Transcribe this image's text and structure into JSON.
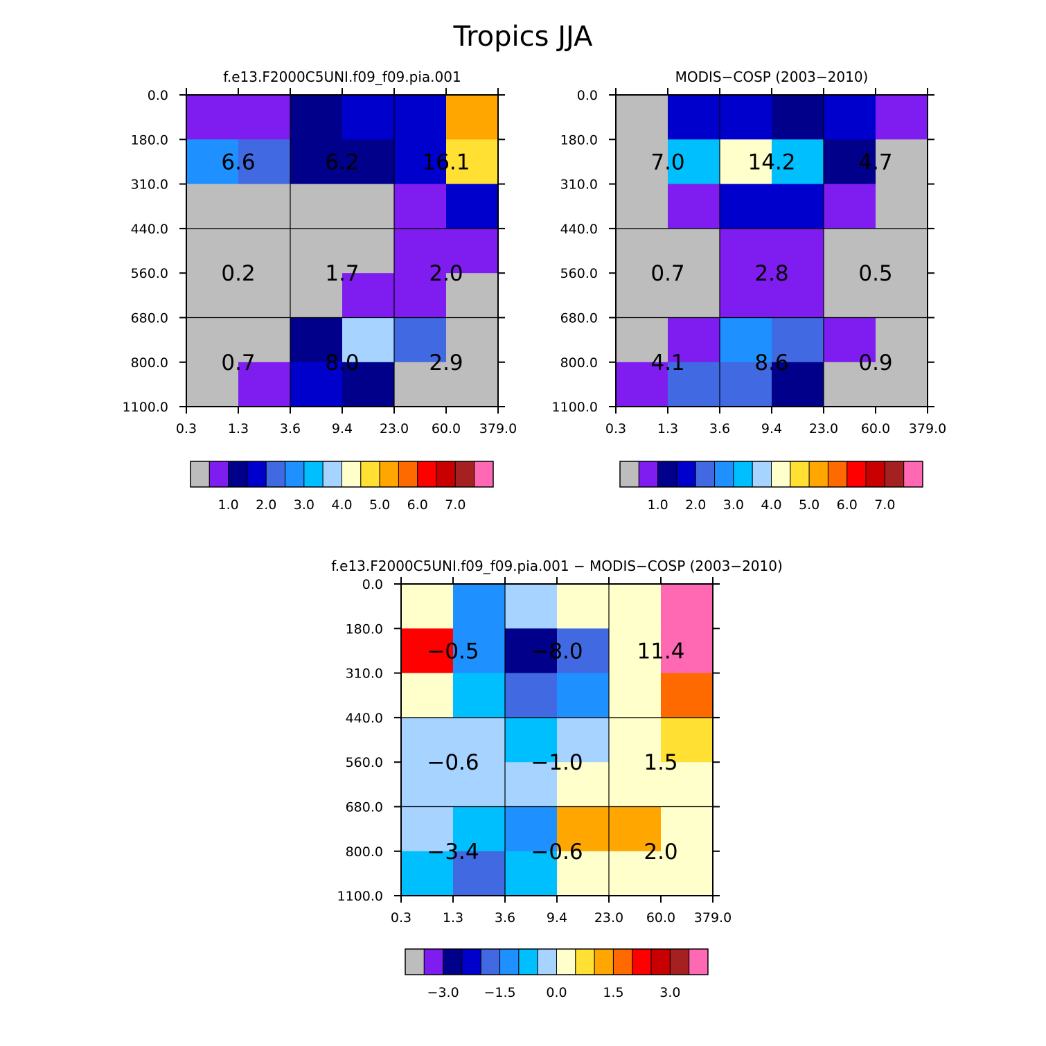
{
  "page_title": "Tropics JJA",
  "colors": {
    "palette": [
      "#bdbdbd",
      "#7f1df0",
      "#00008b",
      "#0000cd",
      "#4169e1",
      "#1e90ff",
      "#00bfff",
      "#a6d3ff",
      "#ffffcc",
      "#ffe033",
      "#ffa600",
      "#ff6a00",
      "#ff0000",
      "#c80000",
      "#a52020",
      "#ff69b4"
    ]
  },
  "chart_data": [
    {
      "type": "heatmap",
      "title": "f.e13.F2000C5UNI.f09_f09.pia.001",
      "x_ticks": [
        "0.3",
        "1.3",
        "3.6",
        "9.4",
        "23.0",
        "60.0",
        "379.0"
      ],
      "y_ticks": [
        "0.0",
        "180.0",
        "310.0",
        "440.0",
        "560.0",
        "680.0",
        "800.0",
        "1100.0"
      ],
      "cells": [
        [
          1,
          1,
          2,
          3,
          3,
          10
        ],
        [
          5,
          4,
          2,
          2,
          3,
          9
        ],
        [
          0,
          0,
          0,
          0,
          1,
          3
        ],
        [
          0,
          0,
          0,
          0,
          1,
          1
        ],
        [
          0,
          0,
          0,
          1,
          1,
          0
        ],
        [
          0,
          0,
          2,
          7,
          4,
          0
        ],
        [
          0,
          1,
          3,
          2,
          0,
          0
        ]
      ],
      "block_labels": [
        [
          "6.6",
          "6.2",
          "16.1"
        ],
        [
          "0.2",
          "1.7",
          "2.0"
        ],
        [
          "0.7",
          "8.0",
          "2.9"
        ]
      ],
      "colorbar": {
        "labels": [
          "1.0",
          "2.0",
          "3.0",
          "4.0",
          "5.0",
          "6.0",
          "7.0"
        ],
        "levels": [
          0.5,
          1.0,
          1.5,
          2.0,
          2.5,
          3.0,
          3.5,
          4.0,
          4.5,
          5.0,
          5.5,
          6.0,
          6.5,
          7.0,
          7.5
        ]
      }
    },
    {
      "type": "heatmap",
      "title": "MODIS-COSP (2003-2010)",
      "x_ticks": [
        "0.3",
        "1.3",
        "3.6",
        "9.4",
        "23.0",
        "60.0",
        "379.0"
      ],
      "y_ticks": [
        "0.0",
        "180.0",
        "310.0",
        "440.0",
        "560.0",
        "680.0",
        "800.0",
        "1100.0"
      ],
      "cells": [
        [
          0,
          3,
          3,
          2,
          3,
          1
        ],
        [
          0,
          6,
          8,
          6,
          2,
          0
        ],
        [
          0,
          1,
          3,
          3,
          1,
          0
        ],
        [
          0,
          0,
          1,
          1,
          0,
          0
        ],
        [
          0,
          0,
          1,
          1,
          0,
          0
        ],
        [
          0,
          1,
          5,
          4,
          1,
          0
        ],
        [
          1,
          4,
          4,
          2,
          0,
          0
        ]
      ],
      "block_labels": [
        [
          "7.0",
          "14.2",
          "4.7"
        ],
        [
          "0.7",
          "2.8",
          "0.5"
        ],
        [
          "4.1",
          "8.6",
          "0.9"
        ]
      ],
      "colorbar": {
        "labels": [
          "1.0",
          "2.0",
          "3.0",
          "4.0",
          "5.0",
          "6.0",
          "7.0"
        ],
        "levels": [
          0.5,
          1.0,
          1.5,
          2.0,
          2.5,
          3.0,
          3.5,
          4.0,
          4.5,
          5.0,
          5.5,
          6.0,
          6.5,
          7.0,
          7.5
        ]
      }
    },
    {
      "type": "heatmap",
      "title": "f.e13.F2000C5UNI.f09_f09.pia.001 - MODIS-COSP (2003-2010)",
      "x_ticks": [
        "0.3",
        "1.3",
        "3.6",
        "9.4",
        "23.0",
        "60.0",
        "379.0"
      ],
      "y_ticks": [
        "0.0",
        "180.0",
        "310.0",
        "440.0",
        "560.0",
        "680.0",
        "800.0",
        "1100.0"
      ],
      "cells": [
        [
          8,
          5,
          7,
          8,
          8,
          15
        ],
        [
          12,
          5,
          2,
          4,
          8,
          15
        ],
        [
          8,
          6,
          4,
          5,
          8,
          11
        ],
        [
          7,
          7,
          6,
          7,
          8,
          9
        ],
        [
          7,
          7,
          7,
          8,
          8,
          8
        ],
        [
          7,
          6,
          5,
          10,
          10,
          8
        ],
        [
          6,
          4,
          6,
          8,
          8,
          8
        ]
      ],
      "block_labels": [
        [
          "-0.5",
          "-8.0",
          "11.4"
        ],
        [
          "-0.6",
          "-1.0",
          "1.5"
        ],
        [
          "-3.4",
          "-0.6",
          "2.0"
        ]
      ],
      "colorbar": {
        "labels": [
          "-3.0",
          "-1.5",
          "0.0",
          "1.5",
          "3.0"
        ],
        "levels": [
          -3.5,
          -3.0,
          -2.5,
          -2.0,
          -1.5,
          -1.0,
          -0.5,
          0.0,
          0.5,
          1.0,
          1.5,
          2.0,
          2.5,
          3.0,
          3.5
        ]
      }
    }
  ]
}
